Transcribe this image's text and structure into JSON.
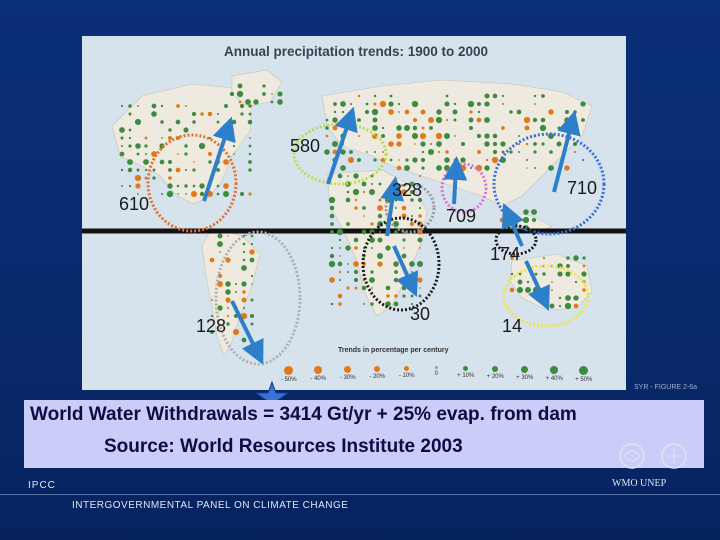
{
  "map": {
    "title": "Annual precipitation trends: 1900 to 2000",
    "legend_title": "Trends in percentage per century",
    "legend_items": [
      "- 50%",
      "- 40%",
      "- 30%",
      "- 20%",
      "- 10%",
      "0",
      "+ 10%",
      "+ 20%",
      "+ 30%",
      "+ 40%",
      "+ 50%"
    ],
    "syr_label": "SYR - FIGURE 2-6a"
  },
  "regions": [
    {
      "label": "610",
      "color": "#e0702a"
    },
    {
      "label": "580",
      "color": "#b8e04a"
    },
    {
      "label": "328",
      "color": "#9a9a9a"
    },
    {
      "label": "709",
      "color": "#e070d0"
    },
    {
      "label": "710",
      "color": "#3a6fd8"
    },
    {
      "label": "174",
      "color": "#1a1a1a"
    },
    {
      "label": "128",
      "color": "#b0b0b0"
    },
    {
      "label": "30",
      "color": "#1a1a1a"
    },
    {
      "label": "14",
      "color": "#f0e640"
    }
  ],
  "caption": {
    "line1": "World Water Withdrawals = 3414 Gt/yr + 25% evap. from dam",
    "line2": "Source: World Resources Institute 2003"
  },
  "footer": {
    "ipcc": "IPCC",
    "full_name": "INTERGOVERNMENTAL PANEL ON CLIMATE CHANGE",
    "partners": "WMO  UNEP"
  },
  "colors": {
    "arrow": "#2c7fc8",
    "background": "#0a2a6e",
    "caption_bg": "#c9cdf7",
    "dot_green": "#3e8a3e",
    "dot_orange": "#e07a18"
  }
}
